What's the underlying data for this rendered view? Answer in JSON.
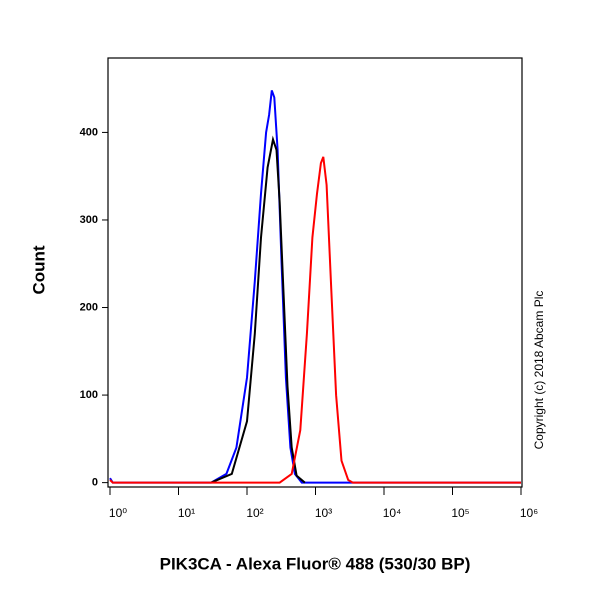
{
  "chart_data": {
    "type": "line",
    "xlabel": "PIK3CA - Alexa Fluor® 488 (530/30 BP)",
    "ylabel": "Count",
    "annotation": "Copyright (c) 2018 Abcam Plc",
    "xscale": "log",
    "xlim": [
      1,
      1000000
    ],
    "ylim": [
      -5,
      485
    ],
    "xticks": [
      {
        "value": 1,
        "label": "10⁰"
      },
      {
        "value": 10,
        "label": "10¹"
      },
      {
        "value": 100,
        "label": "10²"
      },
      {
        "value": 1000,
        "label": "10³"
      },
      {
        "value": 10000,
        "label": "10⁴"
      },
      {
        "value": 100000,
        "label": "10⁵"
      },
      {
        "value": 1000000,
        "label": "10⁶"
      }
    ],
    "yticks": [
      0,
      100,
      200,
      300,
      400
    ],
    "series": [
      {
        "color": "#0000ff",
        "x": [
          1,
          1.1,
          30,
          50,
          70,
          100,
          130,
          160,
          190,
          210,
          230,
          250,
          280,
          320,
          370,
          430,
          500,
          630,
          1000000
        ],
        "values": [
          5,
          0,
          0,
          10,
          40,
          120,
          230,
          330,
          400,
          420,
          448,
          440,
          380,
          250,
          120,
          40,
          10,
          0,
          0
        ]
      },
      {
        "color": "#000000",
        "x": [
          30,
          60,
          100,
          130,
          160,
          200,
          240,
          270,
          300,
          340,
          390,
          450,
          530,
          700
        ],
        "values": [
          0,
          10,
          70,
          170,
          280,
          360,
          392,
          380,
          320,
          220,
          110,
          40,
          8,
          0
        ]
      },
      {
        "color": "#ff0000",
        "x": [
          1,
          1.1,
          300,
          450,
          600,
          750,
          900,
          1050,
          1200,
          1300,
          1450,
          1700,
          2000,
          2400,
          3000,
          3500,
          1000000
        ],
        "values": [
          3,
          0,
          0,
          10,
          60,
          170,
          280,
          330,
          365,
          372,
          340,
          220,
          100,
          25,
          3,
          0,
          0
        ]
      }
    ]
  }
}
